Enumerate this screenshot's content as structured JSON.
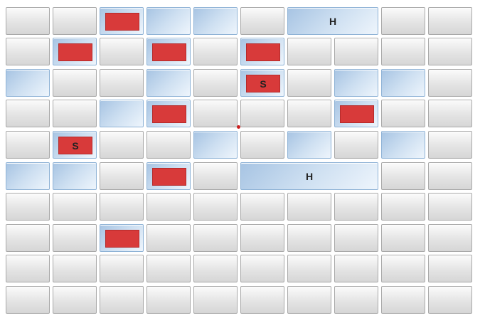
{
  "board": {
    "rows": 10,
    "cols": 10,
    "colors": {
      "cell": "#e4e4e4",
      "cell_border": "#a9a9a9",
      "highlight": "#cddff1",
      "hit": "#d83a3a"
    },
    "cells": [
      {
        "row": 0,
        "col": 2,
        "state": "hit",
        "label": ""
      },
      {
        "row": 0,
        "col": 3,
        "state": "revealed",
        "label": ""
      },
      {
        "row": 0,
        "col": 4,
        "state": "revealed",
        "label": ""
      },
      {
        "row": 0,
        "col": 6,
        "span": 2,
        "state": "revealed",
        "label": "H"
      },
      {
        "row": 1,
        "col": 1,
        "state": "hit",
        "label": ""
      },
      {
        "row": 1,
        "col": 3,
        "state": "hit",
        "label": ""
      },
      {
        "row": 1,
        "col": 5,
        "state": "hit",
        "label": ""
      },
      {
        "row": 2,
        "col": 0,
        "state": "revealed",
        "label": ""
      },
      {
        "row": 2,
        "col": 3,
        "state": "revealed",
        "label": ""
      },
      {
        "row": 2,
        "col": 5,
        "state": "hit",
        "label": "S"
      },
      {
        "row": 2,
        "col": 7,
        "state": "revealed",
        "label": ""
      },
      {
        "row": 2,
        "col": 8,
        "state": "revealed",
        "label": ""
      },
      {
        "row": 3,
        "col": 2,
        "state": "revealed",
        "label": ""
      },
      {
        "row": 3,
        "col": 3,
        "state": "hit",
        "label": ""
      },
      {
        "row": 3,
        "col": 7,
        "state": "hit",
        "label": ""
      },
      {
        "row": 4,
        "col": 1,
        "state": "hit",
        "label": "S"
      },
      {
        "row": 4,
        "col": 4,
        "state": "revealed",
        "label": ""
      },
      {
        "row": 4,
        "col": 6,
        "state": "revealed",
        "label": ""
      },
      {
        "row": 4,
        "col": 8,
        "state": "revealed",
        "label": ""
      },
      {
        "row": 5,
        "col": 0,
        "state": "revealed",
        "label": ""
      },
      {
        "row": 5,
        "col": 1,
        "state": "revealed",
        "label": ""
      },
      {
        "row": 5,
        "col": 3,
        "state": "hit",
        "label": ""
      },
      {
        "row": 5,
        "col": 5,
        "span": 3,
        "state": "revealed",
        "label": "H"
      },
      {
        "row": 7,
        "col": 2,
        "state": "hit",
        "label": ""
      }
    ]
  }
}
